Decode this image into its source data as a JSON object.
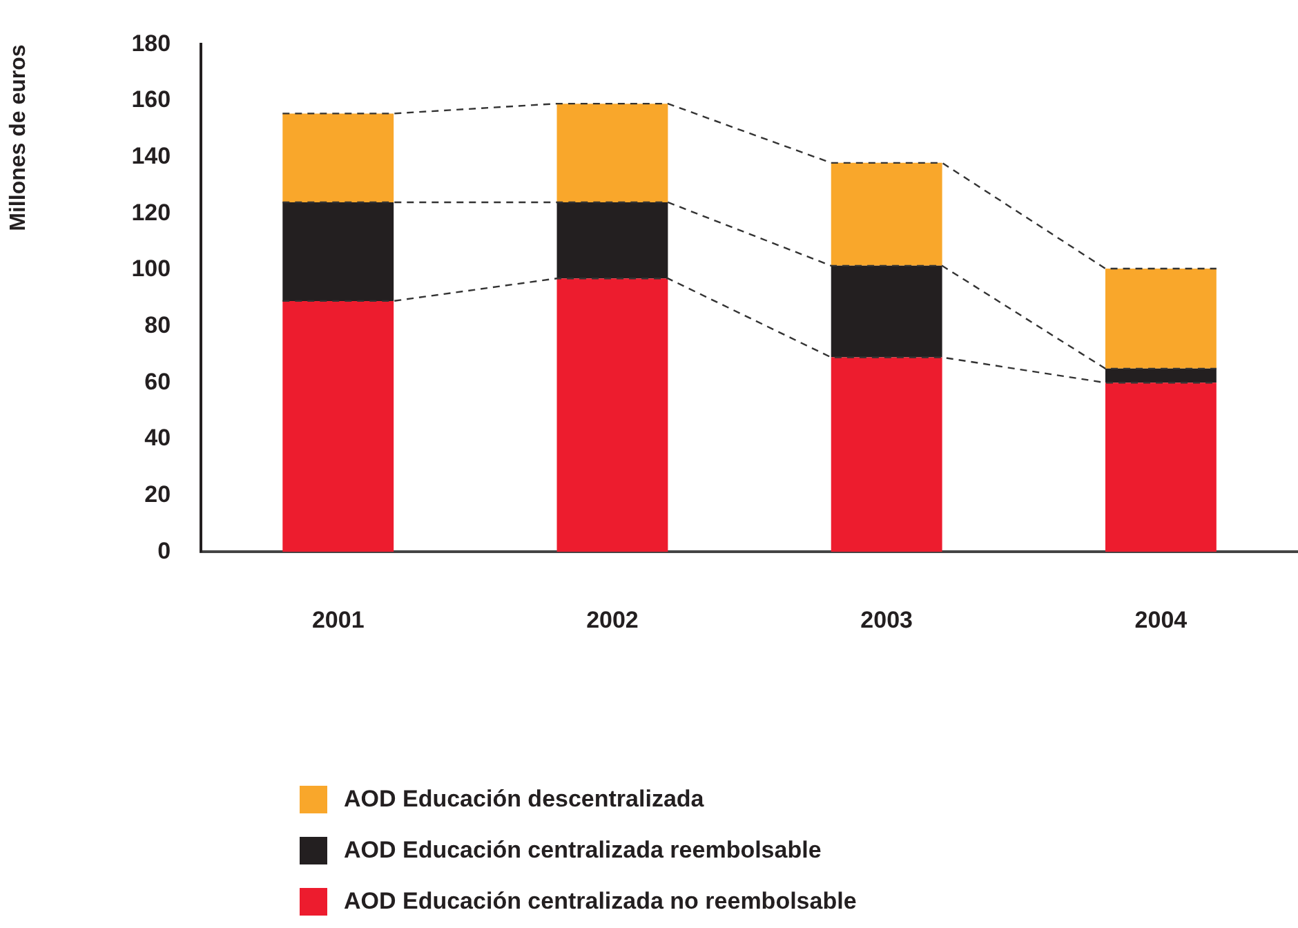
{
  "chart_data": {
    "type": "bar",
    "ylabel": "Millones de euros",
    "categories": [
      "2001",
      "2002",
      "2003",
      "2004"
    ],
    "series": [
      {
        "name": "AOD Educación centralizada no reembolsable",
        "color": "#ed1c2e",
        "values": [
          89,
          97,
          69,
          60
        ]
      },
      {
        "name": "AOD Educación centralizada reembolsable",
        "color": "#231f20",
        "values": [
          35,
          27,
          32.5,
          5
        ]
      },
      {
        "name": "AOD Educación descentralizada",
        "color": "#f9a72b",
        "values": [
          31.5,
          35,
          36.5,
          35.5
        ]
      }
    ],
    "stacked": true,
    "ylim": [
      0,
      180
    ],
    "yticks": [
      0,
      20,
      40,
      60,
      80,
      100,
      120,
      140,
      160,
      180
    ],
    "grid": false,
    "legend": "bottom"
  }
}
